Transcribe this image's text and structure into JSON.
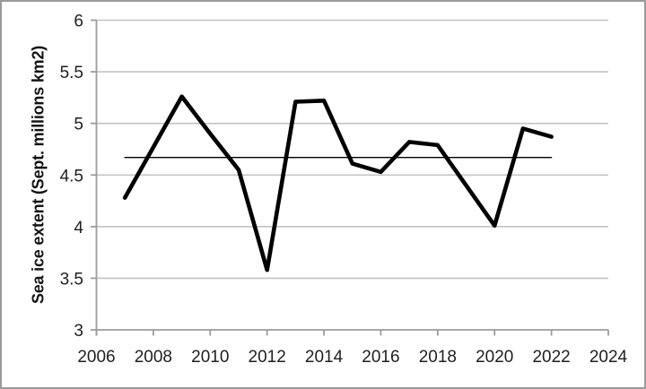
{
  "frame": {
    "background": "#ffffff",
    "border_color": "#9a9a9a"
  },
  "chart_data": {
    "type": "line",
    "title": "",
    "xlabel": "",
    "ylabel": "Sea ice extent (Sept. millions km2)",
    "x_range": [
      2006,
      2024
    ],
    "y_range": [
      3,
      6
    ],
    "x_ticks": [
      2006,
      2008,
      2010,
      2012,
      2014,
      2016,
      2018,
      2020,
      2022,
      2024
    ],
    "x_tick_labels": [
      "2006",
      "2008",
      "2010",
      "2012",
      "2014",
      "2016",
      "2018",
      "2020",
      "2022",
      "2024"
    ],
    "y_ticks": [
      3,
      3.5,
      4,
      4.5,
      5,
      5.5,
      6
    ],
    "y_tick_labels": [
      "3",
      "3.5",
      "4",
      "4.5",
      "5",
      "5.5",
      "6"
    ],
    "grid": "horizontal-only",
    "legend": "none",
    "axis_color": "#9c9c9c",
    "gridline_color": "#c3c3c3",
    "text_color": "#1f1f1f",
    "series": [
      {
        "name": "sea-ice-extent-line",
        "color": "#000000",
        "width": 4.6,
        "x": [
          2007,
          2008,
          2009,
          2010,
          2011,
          2012,
          2013,
          2014,
          2015,
          2016,
          2017,
          2018,
          2019,
          2020,
          2021,
          2022
        ],
        "values": [
          4.28,
          4.77,
          5.26,
          4.9,
          4.55,
          3.58,
          5.21,
          5.22,
          4.61,
          4.53,
          4.82,
          4.79,
          4.4,
          4.01,
          4.95,
          4.87
        ]
      },
      {
        "name": "mean-reference-line",
        "color": "#000000",
        "width": 1.4,
        "x": [
          2007,
          2022
        ],
        "values": [
          4.67,
          4.67
        ]
      }
    ]
  }
}
